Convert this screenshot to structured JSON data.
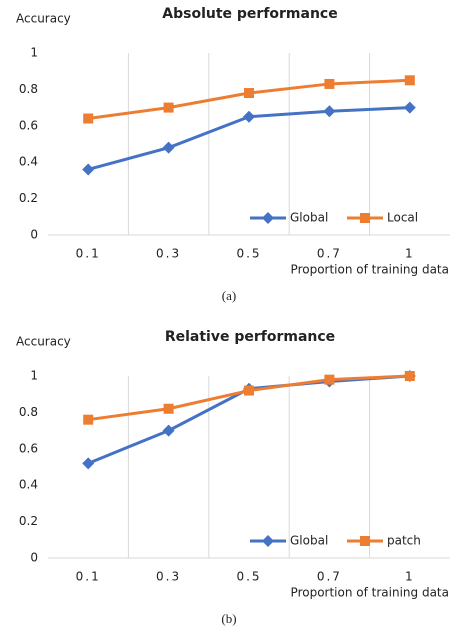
{
  "chart_data": [
    {
      "type": "line",
      "title": "Absolute performance",
      "y_label": "Accuracy",
      "x_label": "Proportion of training data",
      "caption": "(a)",
      "categories": [
        "0.1",
        "0.3",
        "0.5",
        "0.7",
        "1"
      ],
      "series": [
        {
          "name": "Global",
          "color": "#4472c4",
          "marker": "diamond",
          "values": [
            0.36,
            0.48,
            0.65,
            0.68,
            0.7
          ]
        },
        {
          "name": "Local",
          "color": "#ed7d31",
          "marker": "square",
          "values": [
            0.64,
            0.7,
            0.78,
            0.83,
            0.85
          ]
        }
      ],
      "ylim": [
        0,
        1
      ],
      "yticks": [
        0,
        0.2,
        0.4,
        0.6,
        0.8,
        1
      ],
      "grid": "x",
      "legend": "bottom-right"
    },
    {
      "type": "line",
      "title": "Relative performance",
      "y_label": "Accuracy",
      "x_label": "Proportion of training data",
      "caption": "(b)",
      "categories": [
        "0.1",
        "0.3",
        "0.5",
        "0.7",
        "1"
      ],
      "series": [
        {
          "name": "Global",
          "color": "#4472c4",
          "marker": "diamond",
          "values": [
            0.52,
            0.7,
            0.93,
            0.97,
            1.0
          ]
        },
        {
          "name": "patch",
          "color": "#ed7d31",
          "marker": "square",
          "values": [
            0.76,
            0.82,
            0.92,
            0.98,
            1.0
          ]
        }
      ],
      "ylim": [
        0,
        1
      ],
      "yticks": [
        0,
        0.2,
        0.4,
        0.6,
        0.8,
        1
      ],
      "grid": "x",
      "legend": "bottom-right"
    }
  ]
}
